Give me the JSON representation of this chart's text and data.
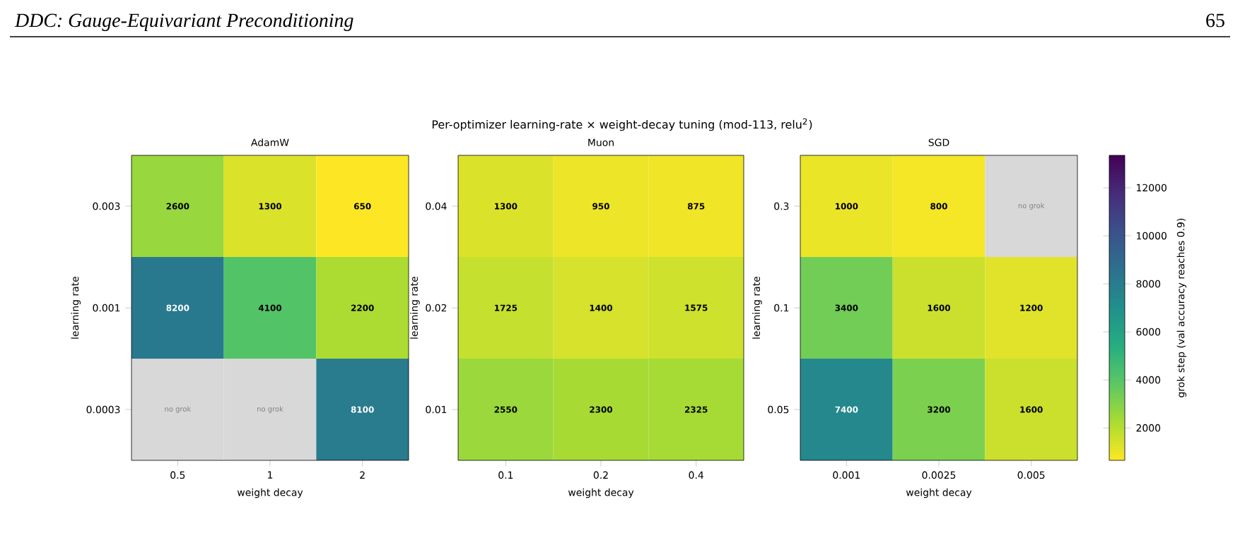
{
  "chart_data": [
    {
      "type": "heatmap",
      "title": "AdamW",
      "xlabel": "weight decay",
      "ylabel": "learning rate",
      "categories": [
        "0.5",
        "1",
        "2"
      ],
      "y_categories": [
        "0.003",
        "0.001",
        "0.0003"
      ],
      "cells": [
        [
          2600,
          1300,
          650
        ],
        [
          8200,
          4100,
          2200
        ],
        [
          null,
          null,
          8100
        ]
      ],
      "cell_labels": [
        [
          "2600",
          "1300",
          "650"
        ],
        [
          "8200",
          "4100",
          "2200"
        ],
        [
          "no grok",
          "no grok",
          "8100"
        ]
      ],
      "annotations": [
        "DDC: Gauge-Equivariant Preconditioning",
        "65",
        "Per-optimizer learning-rate × weight-decay tuning (mod-113, relu$^{2}$)"
      ]
    },
    {
      "type": "heatmap",
      "title": "Muon",
      "xlabel": "weight decay",
      "ylabel": "learning rate",
      "categories": [
        "0.1",
        "0.2",
        "0.4"
      ],
      "y_categories": [
        "0.04",
        "0.02",
        "0.01"
      ],
      "cells": [
        [
          1300,
          950,
          875
        ],
        [
          1725,
          1400,
          1575
        ],
        [
          2550,
          2300,
          2325
        ]
      ],
      "cell_labels": [
        [
          "1300",
          "950",
          "875"
        ],
        [
          "1725",
          "1400",
          "1575"
        ],
        [
          "2550",
          "2300",
          "2325"
        ]
      ]
    },
    {
      "type": "heatmap",
      "title": "SGD",
      "xlabel": "weight decay",
      "ylabel": "learning rate",
      "categories": [
        "0.001",
        "0.0025",
        "0.005"
      ],
      "y_categories": [
        "0.3",
        "0.1",
        "0.05"
      ],
      "cells": [
        [
          1000,
          800,
          null
        ],
        [
          3400,
          1600,
          1200
        ],
        [
          7400,
          3200,
          1600
        ]
      ],
      "cell_labels": [
        [
          "1000",
          "800",
          "no grok"
        ],
        [
          "3400",
          "1600",
          "1200"
        ],
        [
          "7400",
          "3200",
          "1600"
        ]
      ],
      "clim": [
        650,
        13350
      ],
      "clabel": "grok step (val accuracy reaches 0.9)",
      "cticks": [
        2000,
        4000,
        6000,
        8000,
        10000,
        12000
      ]
    }
  ]
}
